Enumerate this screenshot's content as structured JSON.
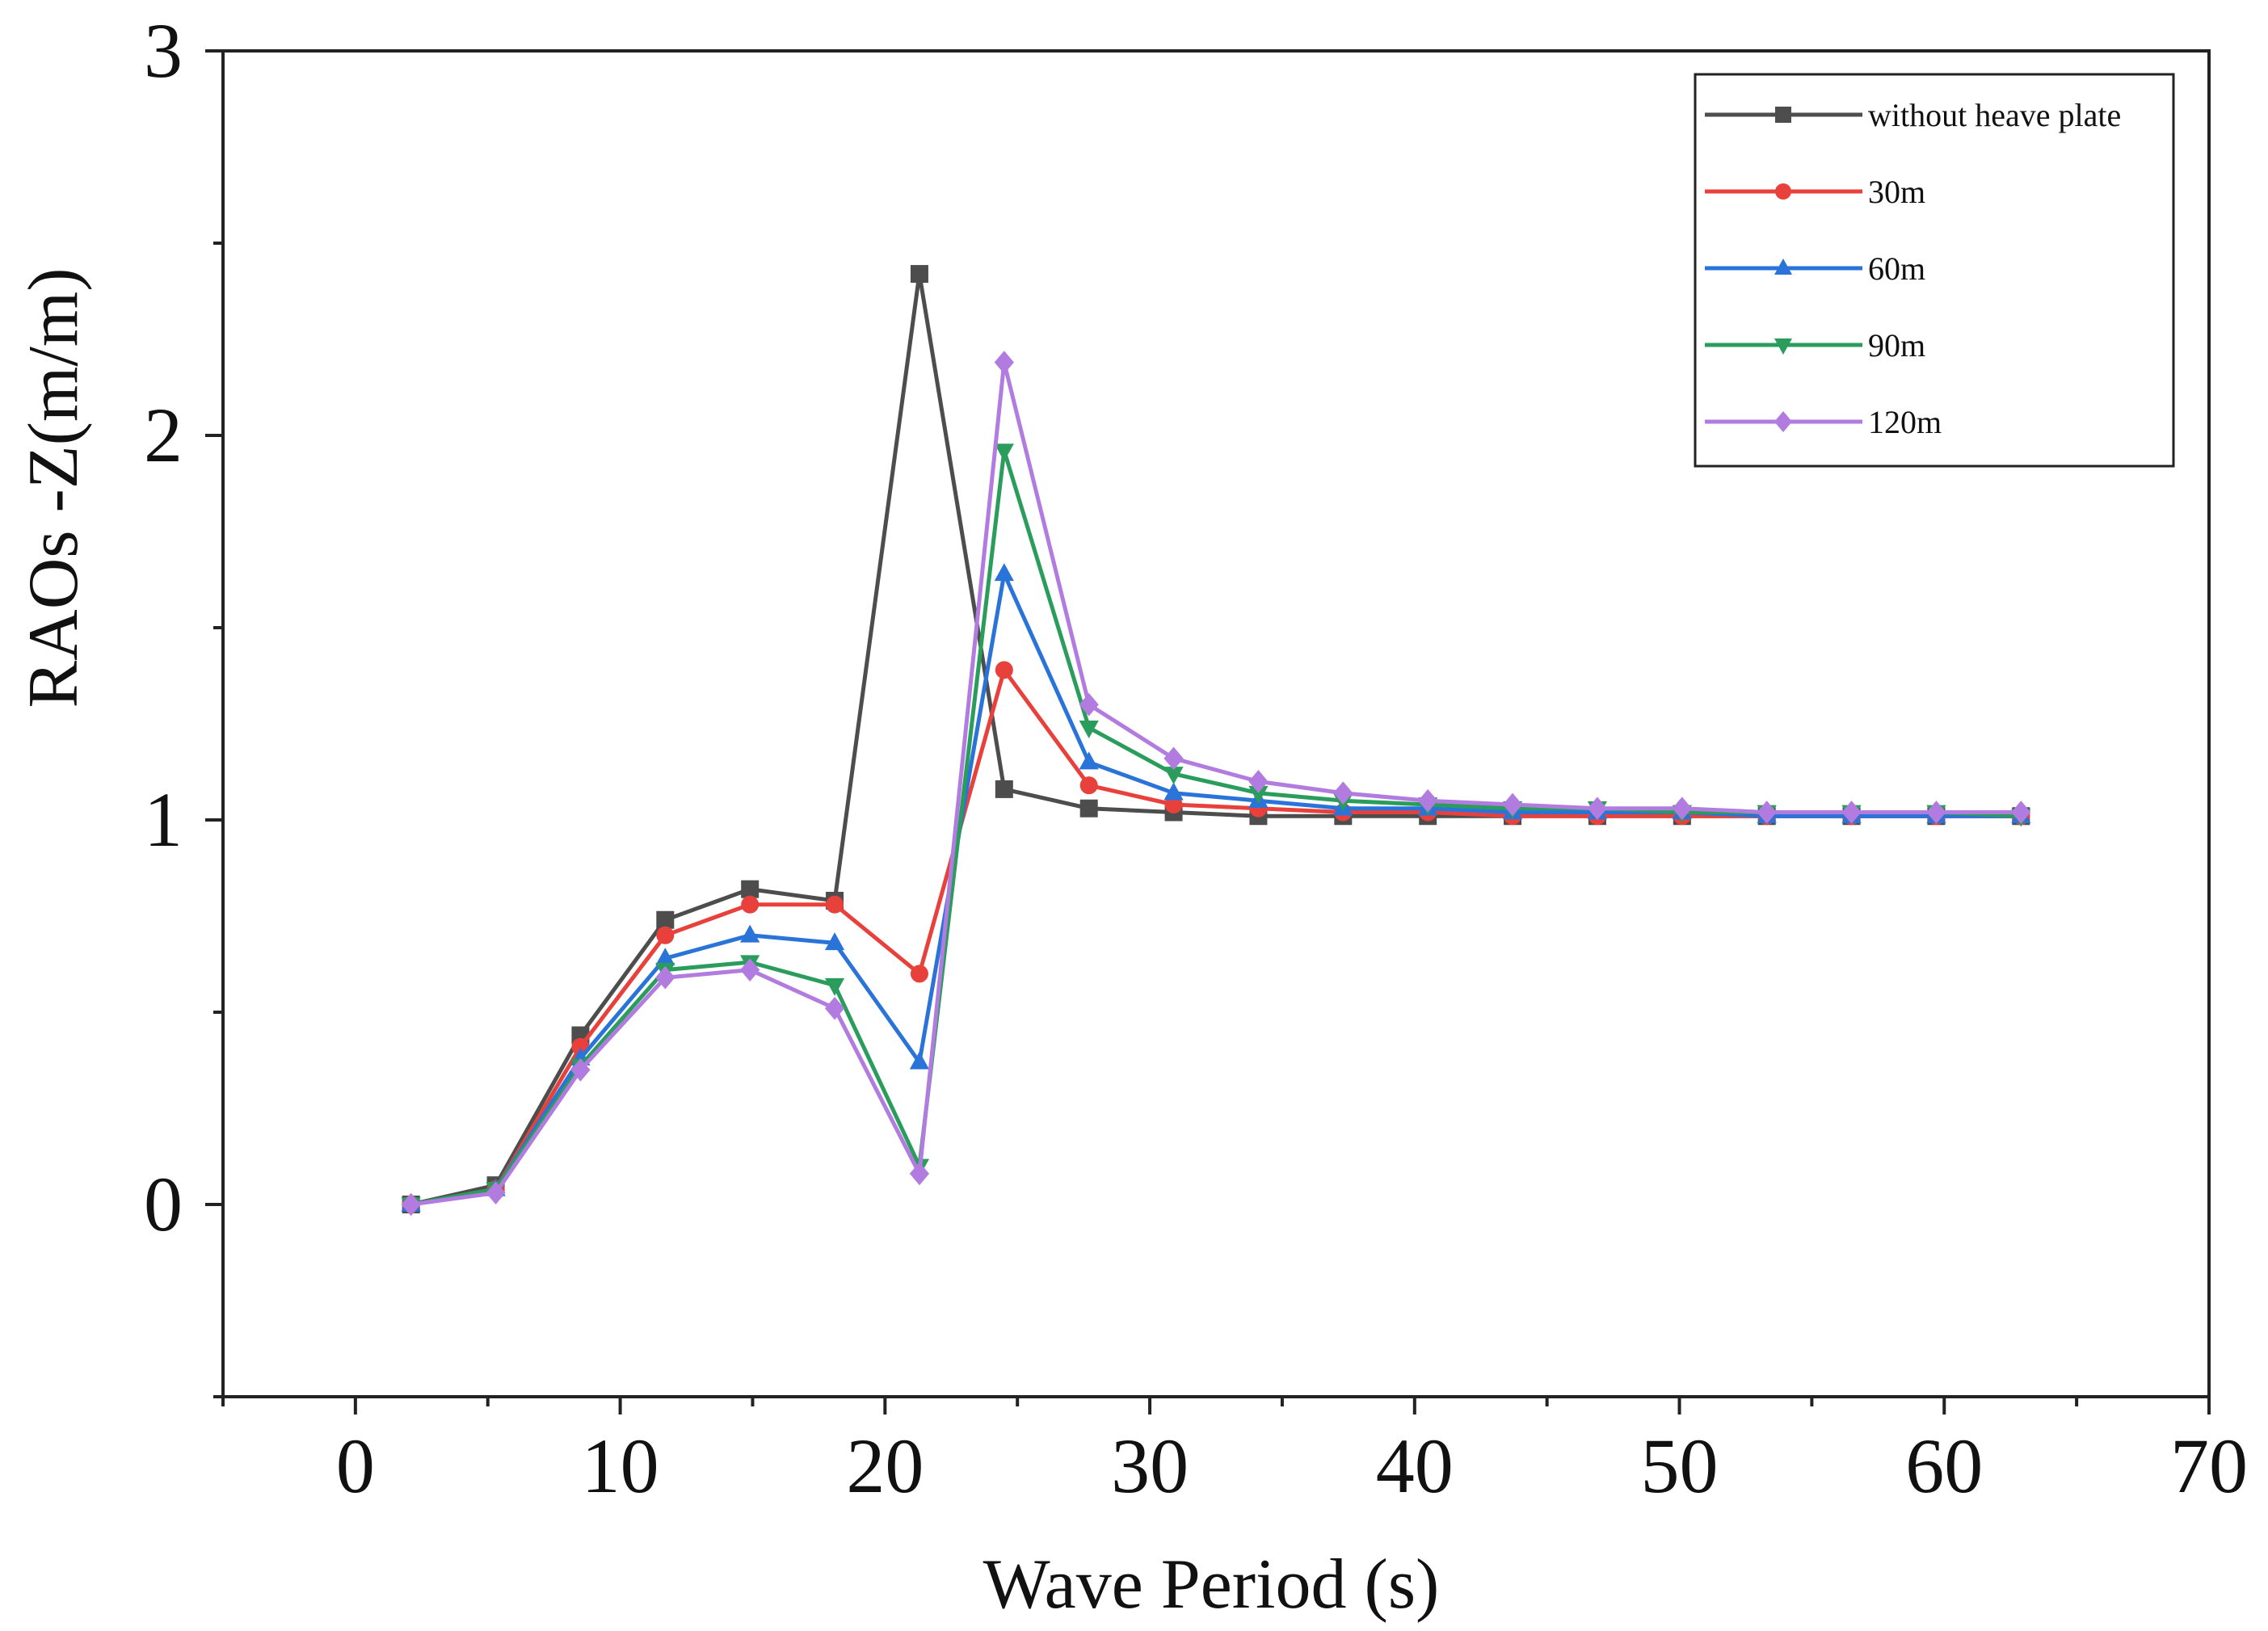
{
  "chart_data": {
    "type": "line",
    "title": "",
    "xlabel": "Wave Period (s)",
    "ylabel": "RAOs -Z(m/m)",
    "xlim": [
      -5,
      70
    ],
    "ylim": [
      -0.5,
      3
    ],
    "xticks": [
      0,
      10,
      20,
      30,
      40,
      50,
      60,
      70
    ],
    "yticks": [
      0,
      1,
      2,
      3
    ],
    "grid": false,
    "legend_position": "top-right",
    "x": [
      2.1,
      5.3,
      8.5,
      11.7,
      14.9,
      18.1,
      21.3,
      24.5,
      27.7,
      30.9,
      34.1,
      37.3,
      40.5,
      43.7,
      46.9,
      50.1,
      53.3,
      56.5,
      59.7,
      62.9
    ],
    "series": [
      {
        "name": "without heave plate",
        "color": "#4d4d4d",
        "marker": "square",
        "values": [
          0.0,
          0.05,
          0.44,
          0.74,
          0.82,
          0.79,
          2.42,
          1.08,
          1.03,
          1.02,
          1.01,
          1.01,
          1.01,
          1.01,
          1.01,
          1.01,
          1.01,
          1.01,
          1.01,
          1.01
        ]
      },
      {
        "name": "30m",
        "color": "#e8413c",
        "marker": "circle",
        "values": [
          0.0,
          0.04,
          0.41,
          0.7,
          0.78,
          0.78,
          0.6,
          1.39,
          1.09,
          1.04,
          1.03,
          1.02,
          1.02,
          1.01,
          1.01,
          1.01,
          1.01,
          1.01,
          1.01,
          1.01
        ]
      },
      {
        "name": "60m",
        "color": "#2a73d9",
        "marker": "triangle-up",
        "values": [
          0.0,
          0.04,
          0.38,
          0.64,
          0.7,
          0.68,
          0.37,
          1.64,
          1.15,
          1.07,
          1.05,
          1.03,
          1.03,
          1.02,
          1.02,
          1.02,
          1.01,
          1.01,
          1.01,
          1.01
        ]
      },
      {
        "name": "90m",
        "color": "#2a9d5c",
        "marker": "triangle-down",
        "values": [
          0.0,
          0.04,
          0.36,
          0.61,
          0.63,
          0.57,
          0.1,
          1.96,
          1.24,
          1.12,
          1.07,
          1.05,
          1.04,
          1.03,
          1.03,
          1.02,
          1.02,
          1.02,
          1.02,
          1.01
        ]
      },
      {
        "name": "120m",
        "color": "#b27be0",
        "marker": "diamond",
        "values": [
          0.0,
          0.03,
          0.35,
          0.59,
          0.61,
          0.51,
          0.08,
          2.19,
          1.3,
          1.16,
          1.1,
          1.07,
          1.05,
          1.04,
          1.03,
          1.03,
          1.02,
          1.02,
          1.02,
          1.02
        ]
      }
    ]
  }
}
